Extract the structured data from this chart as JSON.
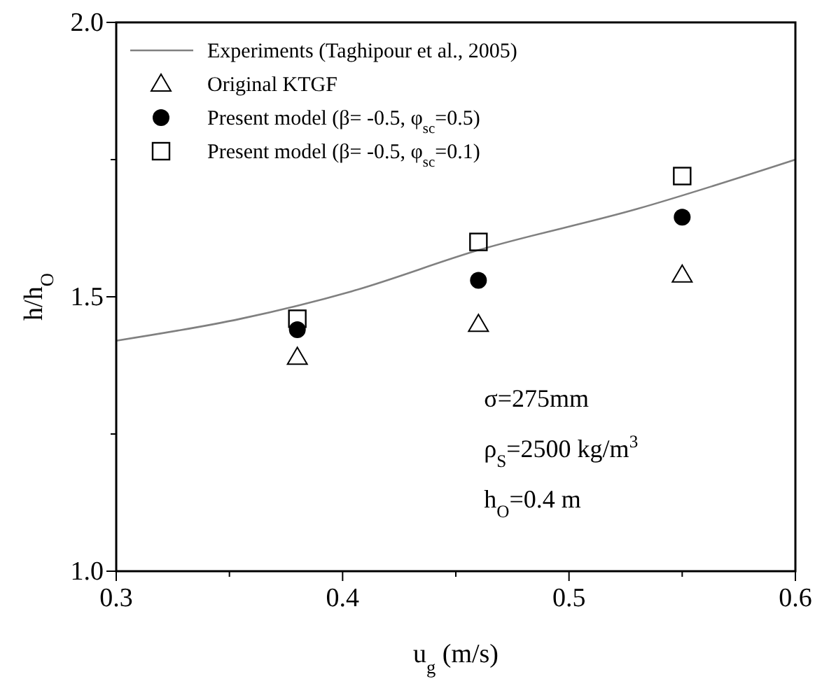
{
  "chart_data": {
    "type": "scatter",
    "xlabel": "u$_{g}$ (m/s)",
    "ylabel": "h/h$_{O}$",
    "xlim": [
      0.3,
      0.6
    ],
    "xticks": [
      0.3,
      {
        "value": 0.35,
        "label": null
      },
      0.4,
      {
        "value": 0.45,
        "label": null
      },
      0.5,
      {
        "value": 0.55,
        "label": null
      },
      0.6
    ],
    "ylim": [
      1.0,
      2.0
    ],
    "yticks": [
      {
        "value": 1.0,
        "label": "1.0"
      },
      {
        "value": 1.25,
        "label": null
      },
      1.5,
      {
        "value": 1.75,
        "label": null
      },
      {
        "value": 2.0,
        "label": "2.0"
      }
    ],
    "legend": "top left",
    "grid": false,
    "series": [
      {
        "name": "Experiments (Taghipour et al., 2005)",
        "type": "line",
        "color": "#808080",
        "marker": "none",
        "line_style": "solid",
        "x": [
          0.3,
          0.355,
          0.404,
          0.46,
          0.53,
          0.6
        ],
        "values": [
          1.42,
          1.46,
          1.51,
          1.585,
          1.66,
          1.75
        ]
      },
      {
        "name": "Original KTGF",
        "color": "#000000",
        "marker": "triangle",
        "x": [
          0.38,
          0.46,
          0.55
        ],
        "values": [
          1.39,
          1.45,
          1.54
        ]
      },
      {
        "name": "Present model (β= -0.5, φ$_{sc}$=0.5)",
        "color": "#000000",
        "marker": "circle",
        "x": [
          0.38,
          0.46,
          0.55
        ],
        "values": [
          1.44,
          1.53,
          1.645
        ]
      },
      {
        "name": "Present model (β= -0.5, φ$_{sc}$=0.1)",
        "color": "#000000",
        "marker": "square",
        "x": [
          0.38,
          0.46,
          0.55
        ],
        "values": [
          1.46,
          1.6,
          1.72
        ]
      }
    ],
    "annotations": [
      "σ=275mm",
      "ρ$_{S}$=2500 kg/m$^{3}$",
      "h$_{O}$=0.4 m"
    ]
  }
}
